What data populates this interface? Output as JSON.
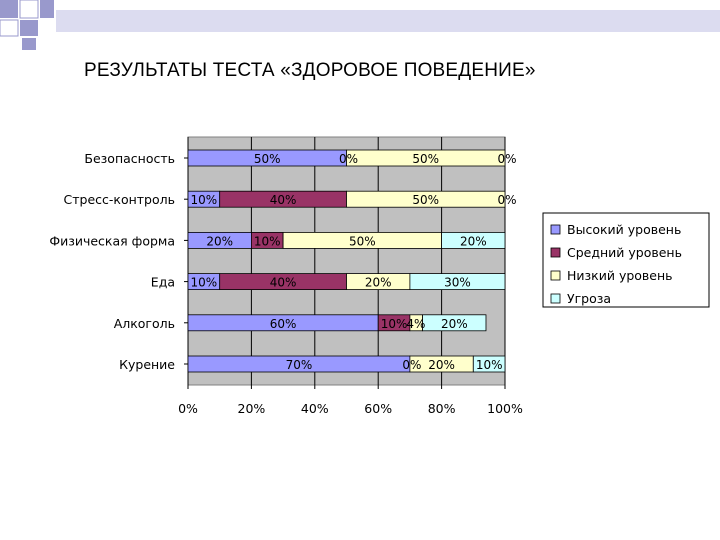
{
  "slide": {
    "title": "РЕЗУЛЬТАТЫ ТЕСТА «ЗДОРОВОЕ ПОВЕДЕНИЕ»"
  },
  "chart_data": {
    "type": "bar",
    "orientation": "horizontal",
    "stacked": "percent",
    "title": "",
    "xlabel": "",
    "ylabel": "",
    "xlim": [
      0,
      100
    ],
    "x_ticks": [
      "0%",
      "20%",
      "40%",
      "60%",
      "80%",
      "100%"
    ],
    "grid": true,
    "legend_position": "right",
    "plot_background": "#c0c0c0",
    "categories": [
      "Безопасность",
      "Стресс-контроль",
      "Физическая форма",
      "Еда",
      "Алкоголь",
      "Курение"
    ],
    "series": [
      {
        "name": "Высокий уровень",
        "color": "#9999ff",
        "values": [
          50,
          10,
          20,
          10,
          60,
          70
        ],
        "labels": [
          "50%",
          "10%",
          "20%",
          "10%",
          "60%",
          "70%"
        ]
      },
      {
        "name": "Средний уровень",
        "color": "#993366",
        "values": [
          0,
          40,
          10,
          40,
          10,
          0
        ],
        "labels": [
          "0%",
          "40%",
          "10%",
          "40%",
          "10%",
          "0%"
        ]
      },
      {
        "name": "Низкий уровень",
        "color": "#ffffcc",
        "values": [
          50,
          50,
          50,
          20,
          4,
          20
        ],
        "labels": [
          "50%",
          "50%",
          "50%",
          "20%",
          "4%",
          "20%"
        ]
      },
      {
        "name": "Угроза",
        "color": "#ccffff",
        "values": [
          0,
          0,
          20,
          30,
          20,
          10
        ],
        "labels": [
          "0%",
          "0%",
          "20%",
          "30%",
          "20%",
          "10%"
        ]
      }
    ]
  }
}
